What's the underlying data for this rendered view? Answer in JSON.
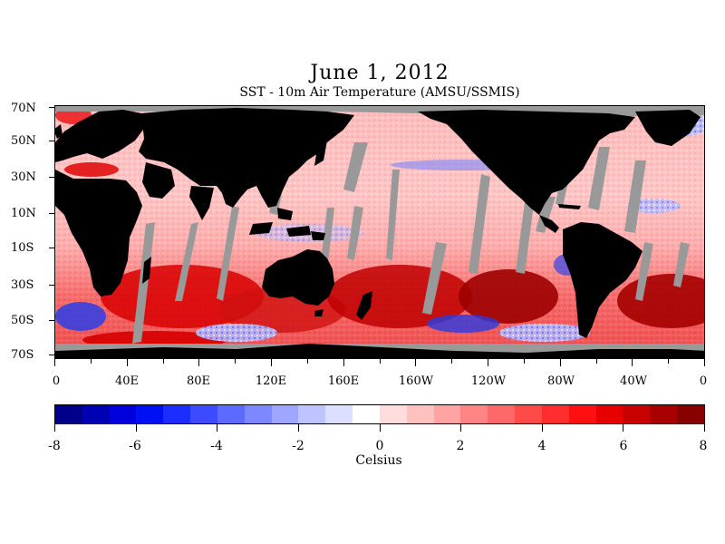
{
  "header": {
    "title": "June 1, 2012",
    "subtitle": "SST - 10m Air Temperature (AMSU/SSMIS)"
  },
  "map": {
    "lat_labels": [
      "70N",
      "50N",
      "30N",
      "10N",
      "10S",
      "30S",
      "50S",
      "70S"
    ],
    "lon_labels": [
      "0",
      "40E",
      "80E",
      "120E",
      "160E",
      "160W",
      "120W",
      "80W",
      "40W",
      "0"
    ],
    "colors": {
      "land": "#000000",
      "no_data": "#999999",
      "warm": "#e8161d",
      "cold": "#1a37e6"
    }
  },
  "colorbar": {
    "tick_labels": [
      "-8",
      "-6",
      "-4",
      "-2",
      "0",
      "2",
      "4",
      "6",
      "8"
    ],
    "unit_label": "Celsius",
    "range": [
      -8,
      8
    ],
    "colors": [
      "#00008a",
      "#0000b5",
      "#0000dd",
      "#0010f5",
      "#1c2dff",
      "#3c4bff",
      "#5d6aff",
      "#7d88ff",
      "#9ea6ff",
      "#bfc3ff",
      "#dcdfff",
      "#ffffff",
      "#ffdcdc",
      "#ffc0c0",
      "#ffa3a3",
      "#ff8585",
      "#ff6868",
      "#ff4a4a",
      "#ff2d2d",
      "#ff1010",
      "#e80000",
      "#c80000",
      "#a80000",
      "#880000"
    ]
  }
}
